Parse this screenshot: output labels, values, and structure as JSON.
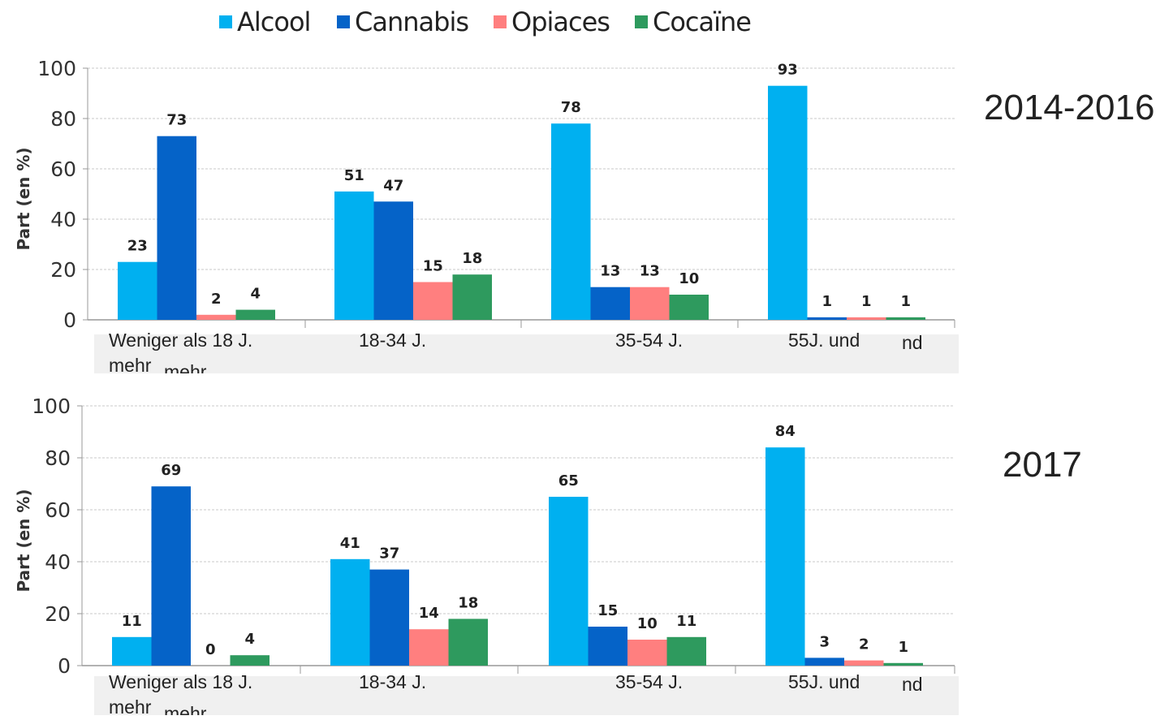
{
  "legend": [
    {
      "name": "Alcool",
      "color": "#00b0f0"
    },
    {
      "name": "Cannabis",
      "color": "#0563c8"
    },
    {
      "name": "Opiaces",
      "color": "#ff7f7f"
    },
    {
      "name": "Cocaïne",
      "color": "#2e9a5e"
    }
  ],
  "categories": [
    "Weniger als 18 J.\nmehr",
    "18-34 J.",
    "35-54 J.",
    "55J. und"
  ],
  "chart_data": [
    {
      "type": "bar",
      "title": "2014-2016",
      "ylabel": "Part (en %)",
      "ylim": [
        0,
        100
      ],
      "yticks": [
        0,
        20,
        40,
        60,
        80,
        100
      ],
      "grid": true,
      "legend_position": "top",
      "categories": [
        "Weniger als 18 J.\nmehr",
        "18-34 J.",
        "35-54 J.",
        "55J. und"
      ],
      "series": [
        {
          "name": "Alcool",
          "values": [
            23,
            51,
            78,
            93
          ]
        },
        {
          "name": "Cannabis",
          "values": [
            73,
            47,
            13,
            1
          ]
        },
        {
          "name": "Opiaces",
          "values": [
            2,
            15,
            13,
            1
          ]
        },
        {
          "name": "Cocaïne",
          "values": [
            4,
            18,
            10,
            1
          ]
        }
      ]
    },
    {
      "type": "bar",
      "title": "2017",
      "ylabel": "Part (en %)",
      "ylim": [
        0,
        100
      ],
      "yticks": [
        0,
        20,
        40,
        60,
        80,
        100
      ],
      "grid": true,
      "legend_position": "top",
      "categories": [
        "Weniger als 18 J.\nmehr",
        "18-34 J.",
        "35-54 J.",
        "55J. und"
      ],
      "series": [
        {
          "name": "Alcool",
          "values": [
            11,
            41,
            65,
            84
          ]
        },
        {
          "name": "Cannabis",
          "values": [
            69,
            37,
            15,
            3
          ]
        },
        {
          "name": "Opiaces",
          "values": [
            0,
            14,
            10,
            2
          ]
        },
        {
          "name": "Cocaïne",
          "values": [
            4,
            18,
            11,
            1
          ]
        }
      ]
    }
  ],
  "ghost_labels": {
    "mehr_fragment": "mehr",
    "nd_fragment": "nd"
  }
}
